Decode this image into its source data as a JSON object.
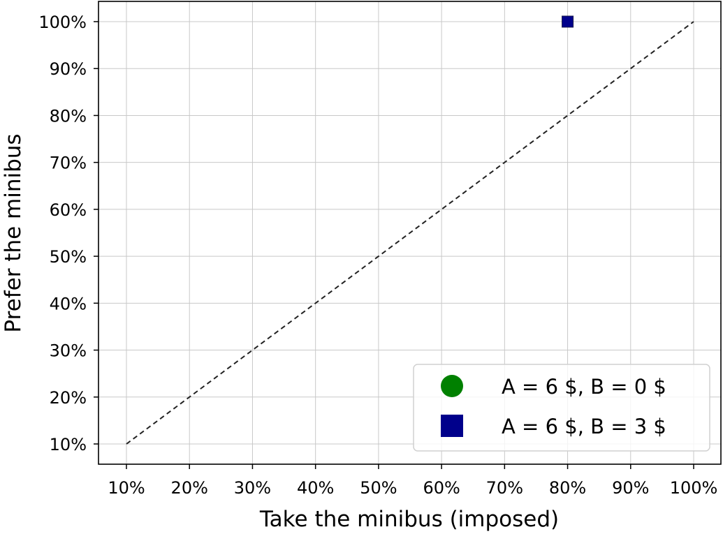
{
  "chart_data": {
    "type": "scatter",
    "xlabel": "Take the minibus (imposed)",
    "ylabel": "Prefer the minibus",
    "xlim": [
      10,
      100
    ],
    "ylim": [
      10,
      100
    ],
    "x_ticks": [
      "10%",
      "20%",
      "30%",
      "40%",
      "50%",
      "60%",
      "70%",
      "80%",
      "90%",
      "100%"
    ],
    "y_ticks": [
      "10%",
      "20%",
      "30%",
      "40%",
      "50%",
      "60%",
      "70%",
      "80%",
      "90%",
      "100%"
    ],
    "grid": true,
    "reference_line": {
      "style": "dashed",
      "color": "#222222",
      "from": [
        10,
        10
      ],
      "to": [
        100,
        100
      ]
    },
    "legend_position": "lower-right",
    "series": [
      {
        "name": "A = 6 $, B = 0 $",
        "marker": "circle",
        "color": "#008000",
        "points": []
      },
      {
        "name": "A = 6 $, B = 3 $",
        "marker": "square",
        "color": "#00008b",
        "points": [
          {
            "x": 80,
            "y": 100
          }
        ]
      }
    ]
  }
}
